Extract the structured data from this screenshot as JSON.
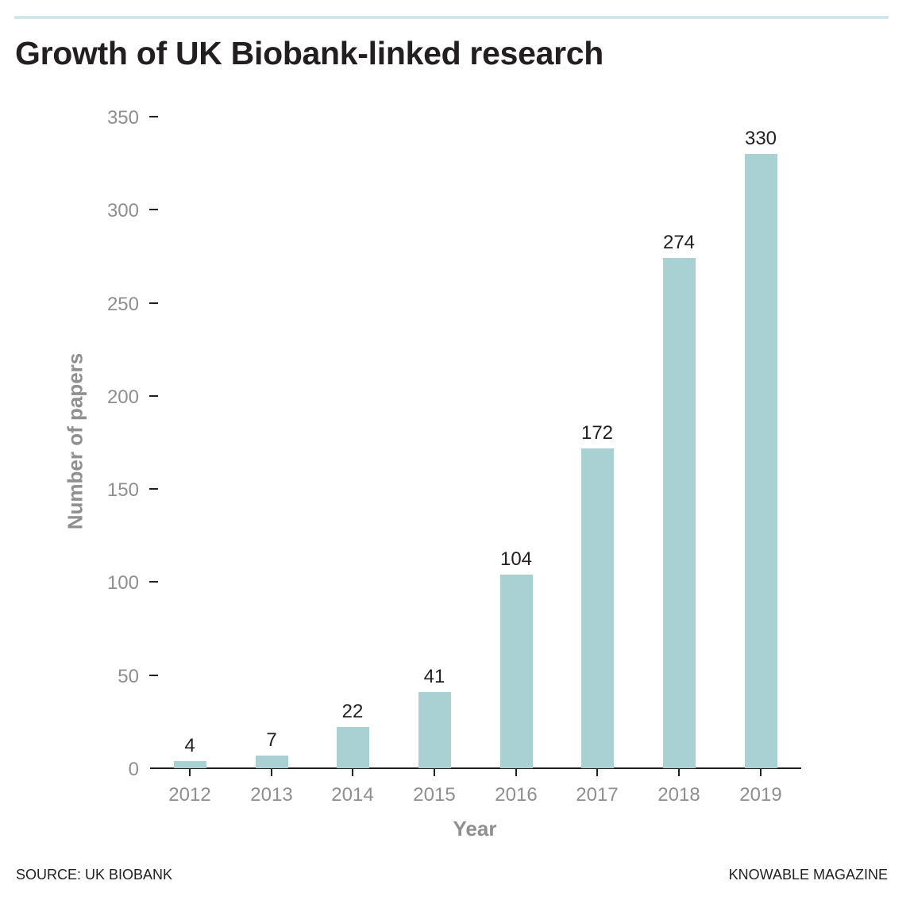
{
  "header": {
    "title": "Growth of UK Biobank-linked research"
  },
  "footer": {
    "source": "SOURCE: UK BIOBANK",
    "credit": "KNOWABLE MAGAZINE"
  },
  "colors": {
    "bar": "#a9d1d4",
    "rule": "#d3e6e9",
    "text": "#231f20",
    "axis_text": "#8f8f8f"
  },
  "chart_data": {
    "type": "bar",
    "title": "Growth of UK Biobank-linked research",
    "xlabel": "Year",
    "ylabel": "Number of papers",
    "categories": [
      "2012",
      "2013",
      "2014",
      "2015",
      "2016",
      "2017",
      "2018",
      "2019"
    ],
    "values": [
      4,
      7,
      22,
      41,
      104,
      172,
      274,
      330
    ],
    "yticks": [
      0,
      50,
      100,
      150,
      200,
      250,
      300,
      350
    ],
    "ylim": [
      0,
      350
    ],
    "grid": false,
    "legend": null,
    "data_labels": true
  }
}
